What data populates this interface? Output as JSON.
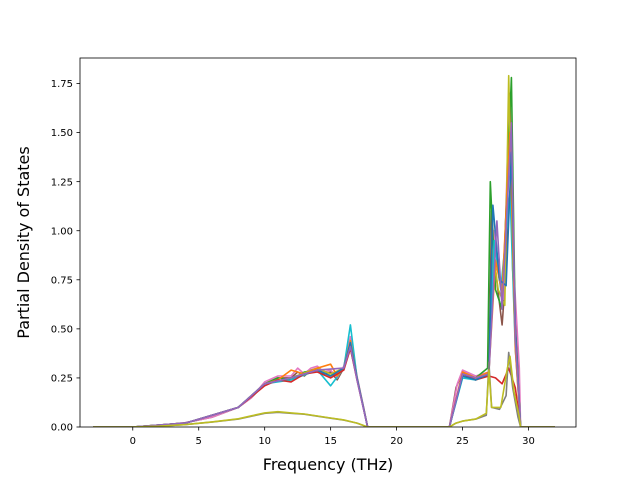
{
  "chart_data": {
    "type": "line",
    "xlabel": "Frequency (THz)",
    "ylabel": "Partial Density of States",
    "xlim": [
      -4.0,
      33.6
    ],
    "ylim": [
      0,
      1.88
    ],
    "xticks": [
      0,
      5,
      10,
      15,
      20,
      25,
      30
    ],
    "yticks": [
      0.0,
      0.25,
      0.5,
      0.75,
      1.0,
      1.25,
      1.5,
      1.75
    ],
    "ytick_labels": [
      "0.00",
      "0.25",
      "0.50",
      "0.75",
      "1.00",
      "1.25",
      "1.50",
      "1.75"
    ],
    "grid": false,
    "legend": "none",
    "series_colors": [
      "#1f77b4",
      "#ff7f0e",
      "#2ca02c",
      "#d62728",
      "#9467bd",
      "#8c564b",
      "#e377c2",
      "#7f7f7f",
      "#bcbd22",
      "#17becf"
    ],
    "series": [
      {
        "color": "#8c564b",
        "points": [
          [
            -3,
            0
          ],
          [
            0,
            0
          ],
          [
            2,
            0.008
          ],
          [
            4,
            0.022
          ],
          [
            6,
            0.05
          ],
          [
            8,
            0.1
          ],
          [
            9,
            0.15
          ],
          [
            10,
            0.22
          ],
          [
            11,
            0.25
          ],
          [
            12,
            0.25
          ],
          [
            12.5,
            0.28
          ],
          [
            13,
            0.26
          ],
          [
            13.5,
            0.29
          ],
          [
            14,
            0.3
          ],
          [
            14.5,
            0.27
          ],
          [
            15,
            0.28
          ],
          [
            15.5,
            0.24
          ],
          [
            16,
            0.3
          ],
          [
            16.5,
            0.42
          ],
          [
            17,
            0.25
          ],
          [
            17.5,
            0.1
          ],
          [
            17.8,
            0
          ],
          [
            24,
            0
          ],
          [
            24.5,
            0.2
          ],
          [
            25,
            0.28
          ],
          [
            26,
            0.25
          ],
          [
            26.5,
            0.26
          ],
          [
            27,
            0.27
          ],
          [
            27.2,
            1.1
          ],
          [
            27.5,
            0.8
          ],
          [
            28,
            0.52
          ],
          [
            28.3,
            0.8
          ],
          [
            28.6,
            1.7
          ],
          [
            28.8,
            0.8
          ],
          [
            29.2,
            0.3
          ],
          [
            29.4,
            0
          ],
          [
            32,
            0
          ]
        ]
      },
      {
        "color": "#e377c2",
        "points": [
          [
            -3,
            0
          ],
          [
            0,
            0
          ],
          [
            2,
            0.008
          ],
          [
            4,
            0.022
          ],
          [
            6,
            0.05
          ],
          [
            8,
            0.1
          ],
          [
            9,
            0.15
          ],
          [
            10,
            0.23
          ],
          [
            11,
            0.26
          ],
          [
            12,
            0.26
          ],
          [
            12.5,
            0.3
          ],
          [
            13,
            0.27
          ],
          [
            13.5,
            0.3
          ],
          [
            14,
            0.31
          ],
          [
            14.5,
            0.28
          ],
          [
            15,
            0.29
          ],
          [
            15.5,
            0.25
          ],
          [
            16,
            0.31
          ],
          [
            16.5,
            0.46
          ],
          [
            17,
            0.26
          ],
          [
            17.5,
            0.1
          ],
          [
            17.8,
            0
          ],
          [
            24,
            0
          ],
          [
            24.6,
            0.22
          ],
          [
            25,
            0.29
          ],
          [
            26,
            0.26
          ],
          [
            27,
            0.28
          ],
          [
            27.4,
            1.0
          ],
          [
            27.8,
            0.75
          ],
          [
            28.1,
            0.65
          ],
          [
            28.5,
            1.6
          ],
          [
            28.8,
            0.9
          ],
          [
            29.3,
            0.3
          ],
          [
            29.4,
            0
          ],
          [
            32,
            0
          ]
        ]
      },
      {
        "color": "#2ca02c",
        "points": [
          [
            -3,
            0
          ],
          [
            0,
            0
          ],
          [
            4,
            0.02
          ],
          [
            8,
            0.1
          ],
          [
            10,
            0.22
          ],
          [
            11,
            0.25
          ],
          [
            12,
            0.24
          ],
          [
            13,
            0.28
          ],
          [
            14,
            0.29
          ],
          [
            15,
            0.26
          ],
          [
            16,
            0.3
          ],
          [
            16.5,
            0.4
          ],
          [
            17,
            0.25
          ],
          [
            17.8,
            0
          ],
          [
            24,
            0
          ],
          [
            25,
            0.27
          ],
          [
            26,
            0.25
          ],
          [
            26.9,
            0.3
          ],
          [
            27.1,
            1.25
          ],
          [
            27.5,
            0.7
          ],
          [
            28,
            0.6
          ],
          [
            28.7,
            1.78
          ],
          [
            29,
            0.5
          ],
          [
            29.4,
            0
          ],
          [
            32,
            0
          ]
        ]
      },
      {
        "color": "#bcbd22",
        "points": [
          [
            -3,
            0
          ],
          [
            0,
            0
          ],
          [
            4,
            0.02
          ],
          [
            8,
            0.1
          ],
          [
            10,
            0.22
          ],
          [
            12,
            0.25
          ],
          [
            14,
            0.3
          ],
          [
            15,
            0.27
          ],
          [
            16,
            0.3
          ],
          [
            16.5,
            0.42
          ],
          [
            17,
            0.25
          ],
          [
            17.8,
            0
          ],
          [
            24,
            0
          ],
          [
            25,
            0.26
          ],
          [
            26,
            0.24
          ],
          [
            27,
            0.27
          ],
          [
            27.3,
            0.9
          ],
          [
            27.7,
            0.7
          ],
          [
            28.2,
            0.62
          ],
          [
            28.5,
            1.79
          ],
          [
            28.9,
            0.6
          ],
          [
            29.4,
            0
          ],
          [
            32,
            0
          ]
        ]
      },
      {
        "color": "#17becf",
        "points": [
          [
            -3,
            0
          ],
          [
            0,
            0
          ],
          [
            4,
            0.02
          ],
          [
            8,
            0.1
          ],
          [
            10,
            0.22
          ],
          [
            12,
            0.24
          ],
          [
            14,
            0.29
          ],
          [
            15,
            0.21
          ],
          [
            16,
            0.3
          ],
          [
            16.5,
            0.52
          ],
          [
            17,
            0.25
          ],
          [
            17.8,
            0
          ],
          [
            24,
            0
          ],
          [
            25,
            0.25
          ],
          [
            26,
            0.24
          ],
          [
            27,
            0.27
          ],
          [
            27.4,
            0.95
          ],
          [
            27.9,
            0.7
          ],
          [
            28.6,
            1.2
          ],
          [
            29,
            0.4
          ],
          [
            29.4,
            0
          ],
          [
            32,
            0
          ]
        ]
      },
      {
        "color": "#ff7f0e",
        "points": [
          [
            -3,
            0
          ],
          [
            0,
            0
          ],
          [
            4,
            0.02
          ],
          [
            8,
            0.1
          ],
          [
            10,
            0.22
          ],
          [
            11,
            0.24
          ],
          [
            12,
            0.29
          ],
          [
            13,
            0.27
          ],
          [
            14,
            0.3
          ],
          [
            15,
            0.32
          ],
          [
            15.5,
            0.26
          ],
          [
            16,
            0.3
          ],
          [
            16.5,
            0.44
          ],
          [
            17,
            0.25
          ],
          [
            17.8,
            0
          ],
          [
            24,
            0
          ],
          [
            25,
            0.28
          ],
          [
            26,
            0.25
          ],
          [
            27,
            0.28
          ],
          [
            27.5,
            0.85
          ],
          [
            28,
            0.68
          ],
          [
            28.6,
            1.5
          ],
          [
            29,
            0.4
          ],
          [
            29.4,
            0
          ],
          [
            32,
            0
          ]
        ]
      },
      {
        "color": "#d62728",
        "points": [
          [
            -3,
            0
          ],
          [
            0,
            0
          ],
          [
            4,
            0.02
          ],
          [
            8,
            0.1
          ],
          [
            10,
            0.21
          ],
          [
            11,
            0.24
          ],
          [
            12,
            0.23
          ],
          [
            13,
            0.27
          ],
          [
            14,
            0.28
          ],
          [
            15,
            0.25
          ],
          [
            16,
            0.29
          ],
          [
            16.5,
            0.4
          ],
          [
            17,
            0.24
          ],
          [
            17.8,
            0
          ],
          [
            24,
            0
          ],
          [
            25,
            0.27
          ],
          [
            26,
            0.24
          ],
          [
            27,
            0.26
          ],
          [
            27.5,
            0.25
          ],
          [
            28,
            0.22
          ],
          [
            28.5,
            0.3
          ],
          [
            29,
            0.2
          ],
          [
            29.4,
            0
          ],
          [
            32,
            0
          ]
        ]
      },
      {
        "color": "#1f77b4",
        "points": [
          [
            -3,
            0
          ],
          [
            0,
            0
          ],
          [
            4,
            0.02
          ],
          [
            8,
            0.1
          ],
          [
            10,
            0.22
          ],
          [
            12,
            0.25
          ],
          [
            14,
            0.29
          ],
          [
            15,
            0.26
          ],
          [
            16,
            0.3
          ],
          [
            16.5,
            0.43
          ],
          [
            17,
            0.25
          ],
          [
            17.8,
            0
          ],
          [
            24,
            0
          ],
          [
            25,
            0.26
          ],
          [
            26,
            0.24
          ],
          [
            27,
            0.27
          ],
          [
            27.3,
            1.13
          ],
          [
            27.8,
            0.75
          ],
          [
            28.3,
            0.72
          ],
          [
            28.7,
            1.4
          ],
          [
            29,
            0.5
          ],
          [
            29.4,
            0
          ],
          [
            32,
            0
          ]
        ]
      },
      {
        "color": "#9467bd",
        "points": [
          [
            -3,
            0
          ],
          [
            0,
            0
          ],
          [
            4,
            0.02
          ],
          [
            8,
            0.1
          ],
          [
            10,
            0.22
          ],
          [
            12,
            0.25
          ],
          [
            14,
            0.29
          ],
          [
            16,
            0.3
          ],
          [
            16.5,
            0.41
          ],
          [
            17,
            0.24
          ],
          [
            17.8,
            0
          ],
          [
            24,
            0
          ],
          [
            25,
            0.27
          ],
          [
            26,
            0.25
          ],
          [
            27,
            0.27
          ],
          [
            27.6,
            1.05
          ],
          [
            28,
            0.6
          ],
          [
            28.7,
            1.55
          ],
          [
            29,
            0.45
          ],
          [
            29.4,
            0
          ],
          [
            32,
            0
          ]
        ]
      },
      {
        "color": "#7f7f7f",
        "points": [
          [
            -3,
            0
          ],
          [
            0,
            0
          ],
          [
            2,
            0.004
          ],
          [
            4,
            0.012
          ],
          [
            6,
            0.025
          ],
          [
            8,
            0.04
          ],
          [
            9,
            0.055
          ],
          [
            10,
            0.07
          ],
          [
            11,
            0.075
          ],
          [
            12,
            0.07
          ],
          [
            13,
            0.065
          ],
          [
            14,
            0.055
          ],
          [
            15,
            0.045
          ],
          [
            16,
            0.035
          ],
          [
            17,
            0.02
          ],
          [
            17.8,
            0
          ],
          [
            24,
            0
          ],
          [
            24.5,
            0.02
          ],
          [
            25,
            0.03
          ],
          [
            26,
            0.04
          ],
          [
            26.8,
            0.06
          ],
          [
            27,
            0.33
          ],
          [
            27.2,
            0.1
          ],
          [
            27.8,
            0.09
          ],
          [
            28.3,
            0.16
          ],
          [
            28.5,
            0.38
          ],
          [
            28.8,
            0.2
          ],
          [
            29.2,
            0.05
          ],
          [
            29.4,
            0
          ],
          [
            32,
            0
          ]
        ]
      },
      {
        "color": "#bcbd22",
        "points": [
          [
            -3,
            0
          ],
          [
            0,
            0
          ],
          [
            2,
            0.004
          ],
          [
            4,
            0.012
          ],
          [
            6,
            0.026
          ],
          [
            8,
            0.042
          ],
          [
            9,
            0.057
          ],
          [
            10,
            0.072
          ],
          [
            11,
            0.078
          ],
          [
            12,
            0.072
          ],
          [
            13,
            0.066
          ],
          [
            14,
            0.056
          ],
          [
            15,
            0.046
          ],
          [
            16,
            0.036
          ],
          [
            17,
            0.02
          ],
          [
            17.8,
            0
          ],
          [
            24,
            0
          ],
          [
            24.5,
            0.02
          ],
          [
            25,
            0.03
          ],
          [
            26,
            0.04
          ],
          [
            26.8,
            0.07
          ],
          [
            27,
            0.29
          ],
          [
            27.2,
            0.1
          ],
          [
            27.9,
            0.1
          ],
          [
            28.4,
            0.3
          ],
          [
            28.6,
            0.36
          ],
          [
            28.9,
            0.18
          ],
          [
            29.3,
            0.05
          ],
          [
            29.4,
            0
          ],
          [
            32,
            0
          ]
        ]
      }
    ]
  }
}
